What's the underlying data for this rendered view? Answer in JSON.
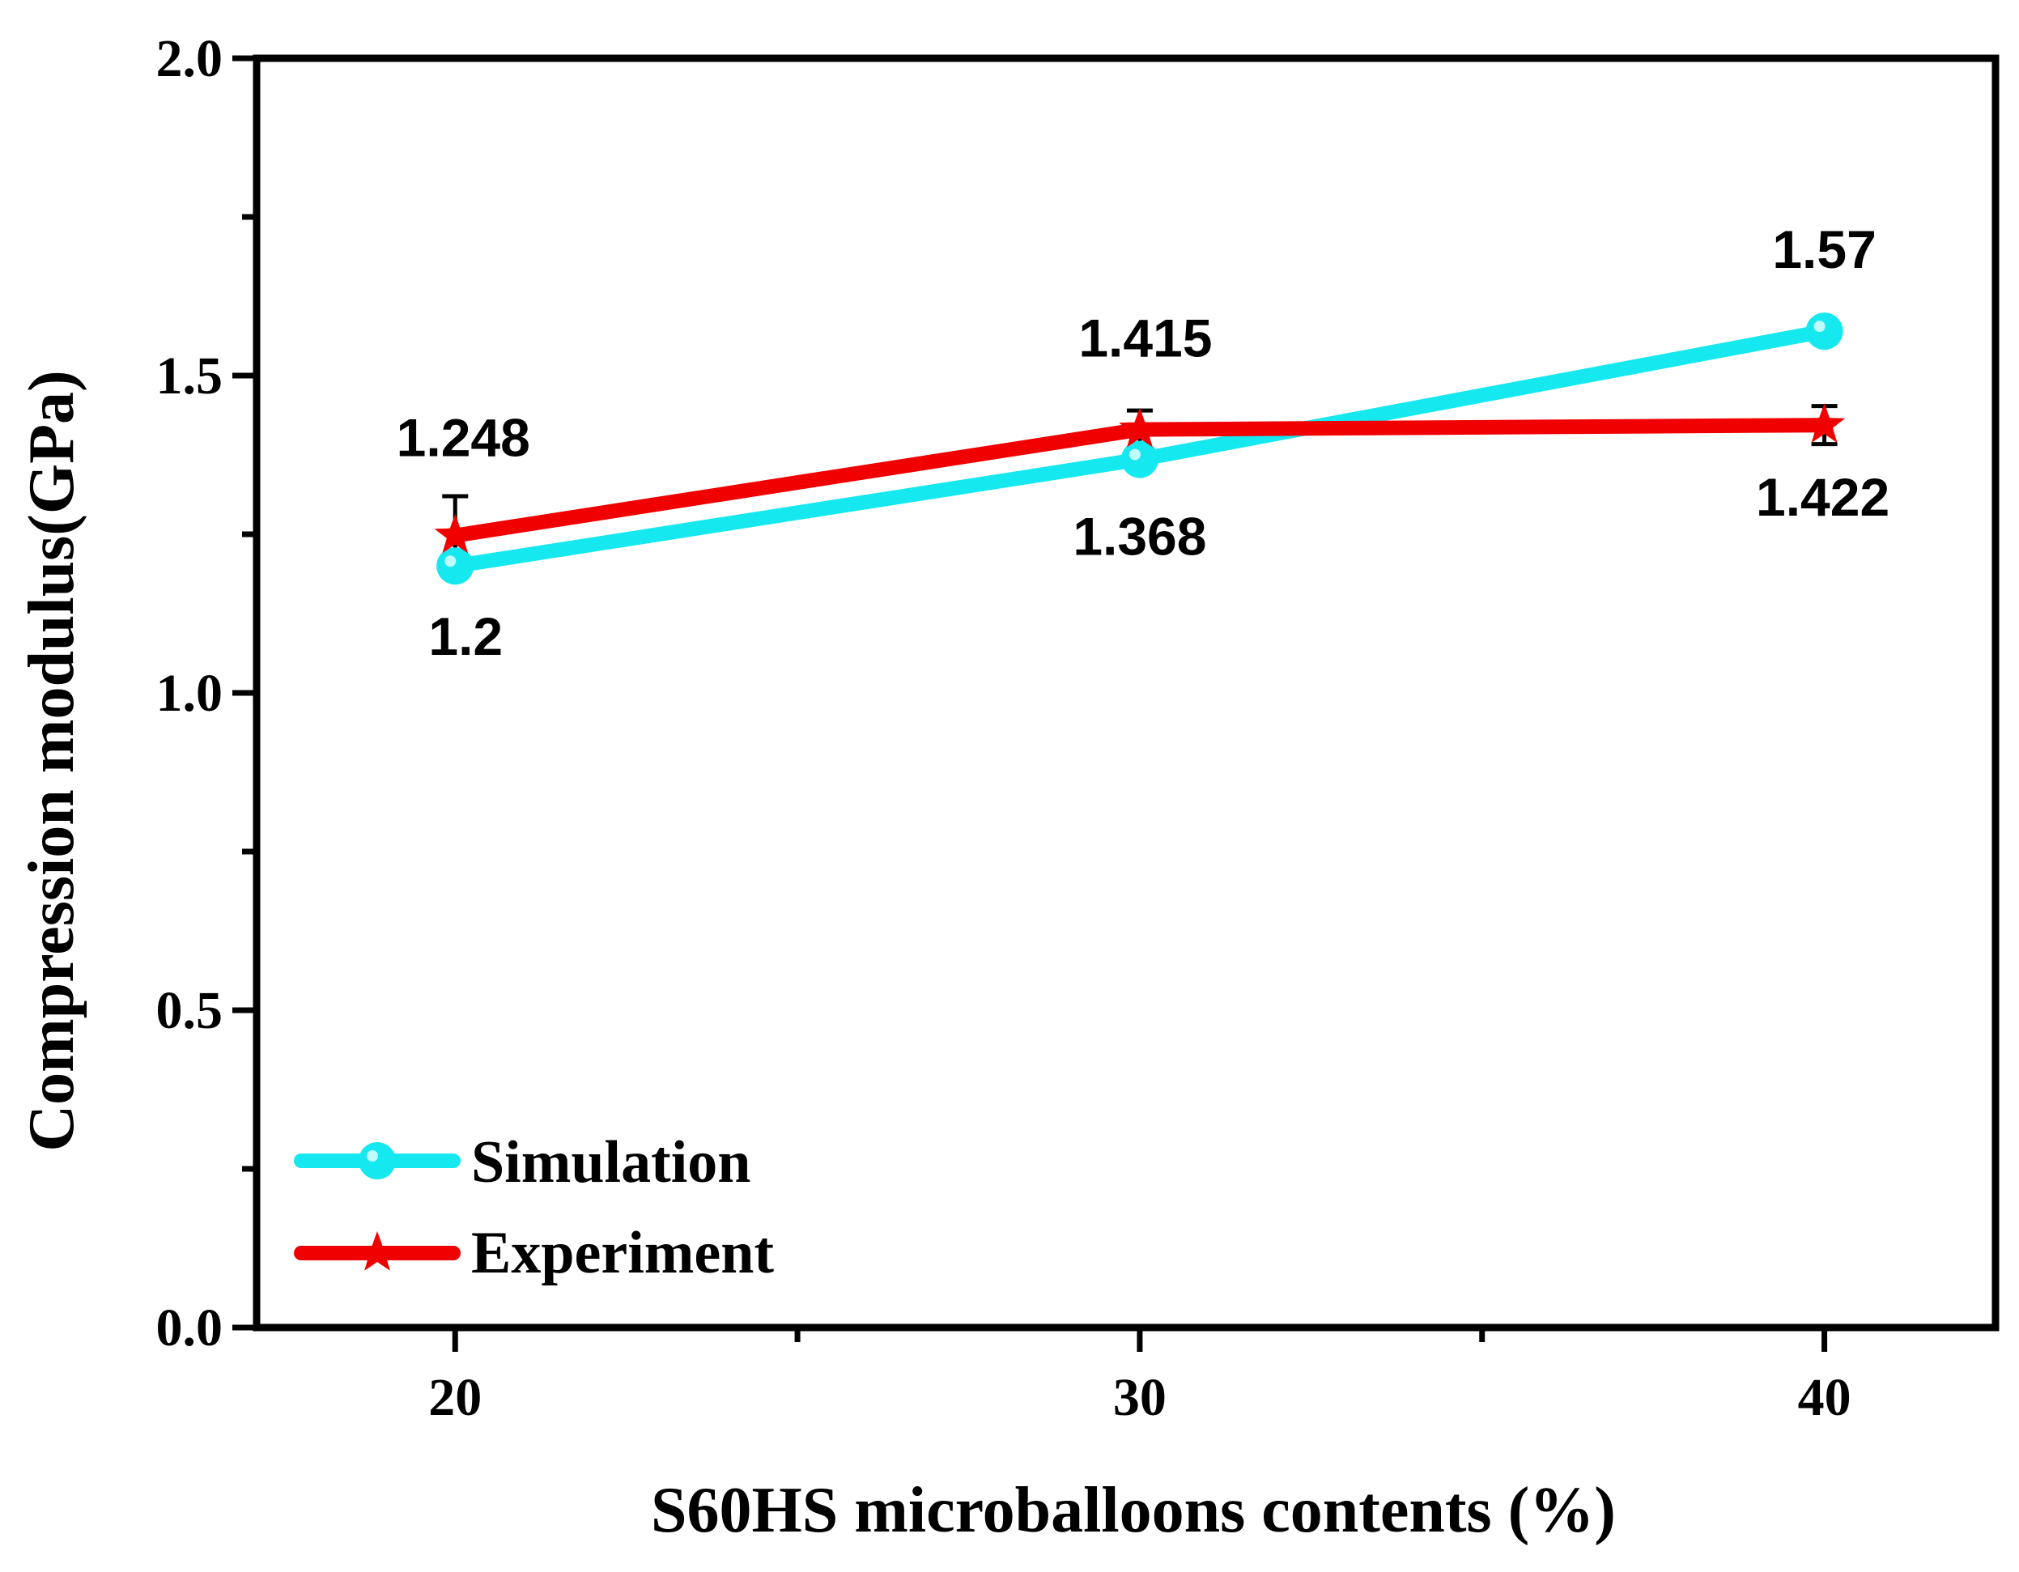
{
  "chart_data": {
    "type": "line",
    "title": "",
    "xlabel": "S60HS microballoons contents (%)",
    "ylabel": "Compression modulus(GPa)",
    "x": [
      20,
      30,
      40
    ],
    "x_tick_labels": [
      "20",
      "30",
      "40"
    ],
    "y_tick_labels": [
      "0.0",
      "0.5",
      "1.0",
      "1.5",
      "2.0"
    ],
    "y_ticks": [
      0.0,
      0.5,
      1.0,
      1.5,
      2.0
    ],
    "xlim": [
      17.1,
      42.5
    ],
    "ylim": [
      0.0,
      2.0
    ],
    "legend_position": "bottom-left",
    "series": [
      {
        "name": "Simulation",
        "color": "#16E8F0",
        "marker": "circle",
        "values": [
          1.2,
          1.368,
          1.57
        ],
        "labels": [
          "1.2",
          "1.368",
          "1.57"
        ]
      },
      {
        "name": "Experiment",
        "color": "#F00000",
        "marker": "star",
        "values": [
          1.248,
          1.415,
          1.422
        ],
        "error": [
          0.062,
          0.03,
          0.03
        ],
        "labels": [
          "1.248",
          "1.415",
          "1.422"
        ]
      }
    ]
  }
}
